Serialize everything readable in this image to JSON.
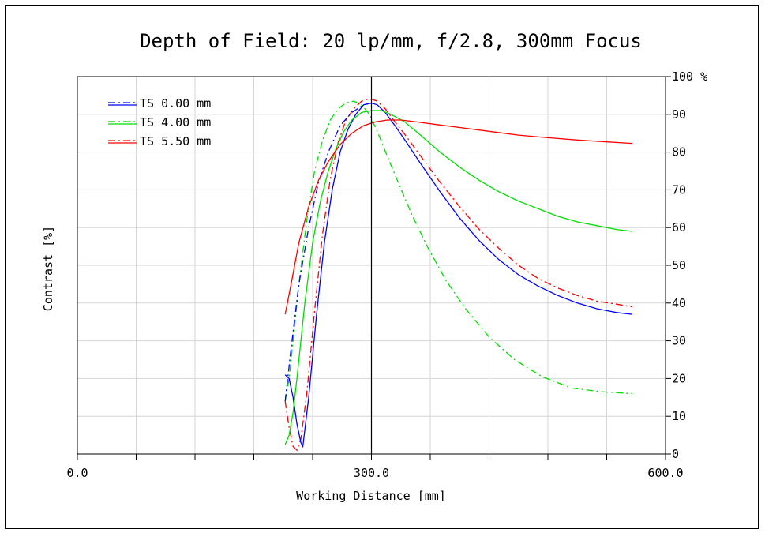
{
  "chart_data": {
    "type": "line",
    "title": "Depth of Field: 20 lp/mm, f/2.8, 300mm Focus",
    "xlabel": "Working Distance [mm]",
    "ylabel": "Contrast [%]",
    "xlim": [
      0,
      600
    ],
    "ylim": [
      0,
      100
    ],
    "x_tick_labels": [
      {
        "value": 0,
        "label": "0.0"
      },
      {
        "value": 300,
        "label": "300.0"
      },
      {
        "value": 600,
        "label": "600.0"
      }
    ],
    "x_minor_ticks": [
      60,
      120,
      180,
      240,
      360,
      420,
      480,
      540
    ],
    "y_ticks": [
      0,
      10,
      20,
      30,
      40,
      50,
      60,
      70,
      80,
      90,
      100
    ],
    "y_top_label": "100 %",
    "y_axis_side": "right",
    "focus_line_x": 300,
    "grid": true,
    "legend_position": "top-left",
    "series": [
      {
        "name": "TS 0.00 mm",
        "color": "#0000ff",
        "dash": "solid",
        "x": [
          212,
          216,
          220,
          224,
          228,
          230,
          236,
          244,
          252,
          260,
          268,
          276,
          284,
          292,
          300,
          306,
          314,
          324,
          336,
          350,
          370,
          390,
          410,
          430,
          450,
          470,
          490,
          510,
          530,
          550,
          566
        ],
        "y": [
          21,
          20,
          15,
          8,
          3,
          2,
          15,
          37,
          56,
          70,
          80,
          86,
          90,
          92.5,
          93,
          92.5,
          90.5,
          87,
          82.5,
          77,
          69.5,
          62.5,
          56.5,
          51.5,
          47.5,
          44.5,
          42,
          40,
          38.5,
          37.5,
          37
        ]
      },
      {
        "name": "TS 4.00 mm",
        "color": "#00dd00",
        "dash": "solid",
        "x": [
          212,
          216,
          220,
          224,
          228,
          232,
          240,
          248,
          256,
          264,
          272,
          280,
          290,
          300,
          310,
          320,
          334,
          350,
          370,
          390,
          410,
          430,
          450,
          470,
          490,
          510,
          530,
          550,
          566
        ],
        "y": [
          2.5,
          5,
          11,
          20,
          30,
          40,
          56,
          67,
          75,
          81,
          85.5,
          88.5,
          90.5,
          91,
          91,
          90,
          88,
          84.5,
          80,
          76,
          72.5,
          69.5,
          67,
          65,
          63,
          61.5,
          60.5,
          59.5,
          59
        ]
      },
      {
        "name": "TS 5.50 mm",
        "color": "#ff0000",
        "dash": "solid",
        "x": [
          212,
          218,
          226,
          236,
          246,
          256,
          268,
          280,
          292,
          304,
          316,
          330,
          346,
          366,
          390,
          420,
          450,
          480,
          510,
          540,
          566
        ],
        "y": [
          37,
          45,
          56,
          65.5,
          72.5,
          77.5,
          82,
          85,
          87,
          88,
          88.5,
          88.5,
          88,
          87.3,
          86.5,
          85.5,
          84.5,
          83.8,
          83.2,
          82.7,
          82.3
        ]
      }
    ],
    "extra_dashdot_curves": [
      {
        "color": "#00dd00",
        "x": [
          212,
          216,
          220,
          226,
          234,
          242,
          250,
          258,
          266,
          274,
          282,
          290,
          298,
          306,
          316,
          328,
          342,
          358,
          376,
          396,
          420,
          446,
          474,
          504,
          534,
          566
        ],
        "y": [
          14,
          20,
          30,
          45,
          62,
          75,
          83,
          88.5,
          91.5,
          93,
          93.5,
          92.5,
          90,
          85.5,
          79,
          71.5,
          63,
          54.5,
          46,
          38.5,
          31,
          25,
          20.5,
          17.5,
          16.5,
          16
        ]
      },
      {
        "color": "#ff0000",
        "x": [
          212,
          216,
          220,
          224,
          228,
          234,
          242,
          250,
          258,
          266,
          274,
          282,
          290,
          296,
          300,
          306,
          314,
          324,
          336,
          350,
          370,
          390,
          410,
          430,
          450,
          470,
          490,
          510,
          530,
          550,
          566
        ],
        "y": [
          14,
          7,
          2,
          1,
          4,
          16,
          38,
          58,
          73,
          82.5,
          88.5,
          91.5,
          93.5,
          94,
          94,
          93.5,
          91.5,
          88,
          84,
          79,
          72,
          65.5,
          59.5,
          54.5,
          50,
          46.5,
          44,
          42,
          40.5,
          39.7,
          39
        ]
      },
      {
        "color": "#0000ff",
        "x": [
          212,
          218,
          226,
          236,
          246,
          256,
          268,
          280,
          292,
          300
        ],
        "y": [
          14,
          28,
          45,
          60,
          72,
          80,
          87,
          90.5,
          92.5,
          93
        ]
      }
    ]
  }
}
